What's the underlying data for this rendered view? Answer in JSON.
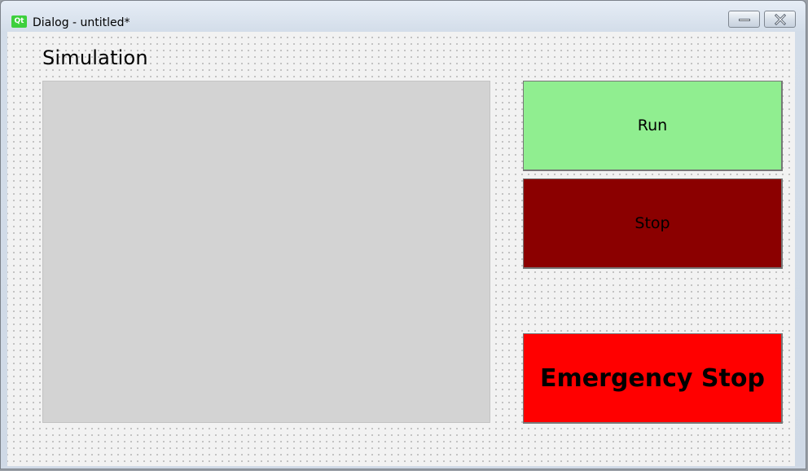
{
  "window": {
    "title": "Dialog - untitled*",
    "app_icon_text": "Qt",
    "controls": {
      "minimize_icon": "minimize-icon",
      "close_icon": "close-icon"
    }
  },
  "content": {
    "title": "Simulation",
    "simulation_view_color": "#d3d3d3",
    "buttons": {
      "run": {
        "label": "Run",
        "background": "#90ee90"
      },
      "stop": {
        "label": "Stop",
        "background": "#8b0000"
      },
      "emergency_stop": {
        "label": "Emergency Stop",
        "background": "#ff0000"
      }
    }
  }
}
